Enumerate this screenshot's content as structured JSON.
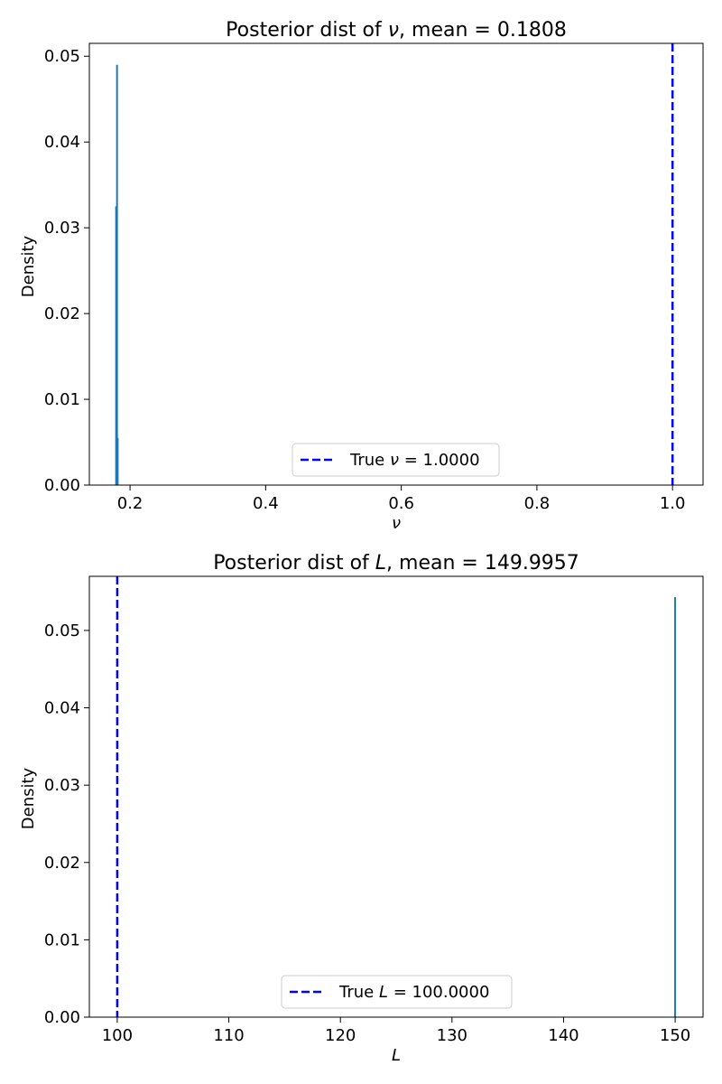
{
  "chart_data": [
    {
      "type": "histogram",
      "title": "Posterior dist of ν, mean = 0.1808",
      "xlabel": "ν",
      "ylabel": "Density",
      "xlim": [
        0.14,
        1.045
      ],
      "ylim": [
        0,
        0.0515
      ],
      "xticks": [
        0.2,
        0.4,
        0.6,
        0.8,
        1.0
      ],
      "xtick_labels": [
        "0.2",
        "0.4",
        "0.6",
        "0.8",
        "1.0"
      ],
      "yticks": [
        0,
        0.01,
        0.02,
        0.03,
        0.04,
        0.05
      ],
      "ytick_labels": [
        "0.00",
        "0.01",
        "0.02",
        "0.03",
        "0.04",
        "0.05"
      ],
      "bars": [
        {
          "x": 0.1795,
          "value": 0.0325
        },
        {
          "x": 0.1808,
          "value": 0.049
        },
        {
          "x": 0.1818,
          "value": 0.0055
        }
      ],
      "bar_color": "#1f77b4",
      "reference_line": {
        "x": 1.0,
        "label": "True ν = 1.0000",
        "color": "#0000ff",
        "style": "dashed"
      },
      "legend_position": "lower center",
      "grid": false
    },
    {
      "type": "histogram",
      "title": "Posterior dist of L, mean = 149.9957",
      "xlabel": "L",
      "ylabel": "Density",
      "xlim": [
        97.5,
        152.5
      ],
      "ylim": [
        0,
        0.057
      ],
      "xticks": [
        100,
        110,
        120,
        130,
        140,
        150
      ],
      "xtick_labels": [
        "100",
        "110",
        "120",
        "130",
        "140",
        "150"
      ],
      "yticks": [
        0,
        0.01,
        0.02,
        0.03,
        0.04,
        0.05
      ],
      "ytick_labels": [
        "0.00",
        "0.01",
        "0.02",
        "0.03",
        "0.04",
        "0.05"
      ],
      "bars": [
        {
          "x": 149.9957,
          "value": 0.0543
        }
      ],
      "bar_color": "#1f77b4",
      "reference_line": {
        "x": 100,
        "label": "True L = 100.0000",
        "color": "#0000ff",
        "style": "dashed"
      },
      "legend_position": "lower center",
      "grid": false
    }
  ]
}
